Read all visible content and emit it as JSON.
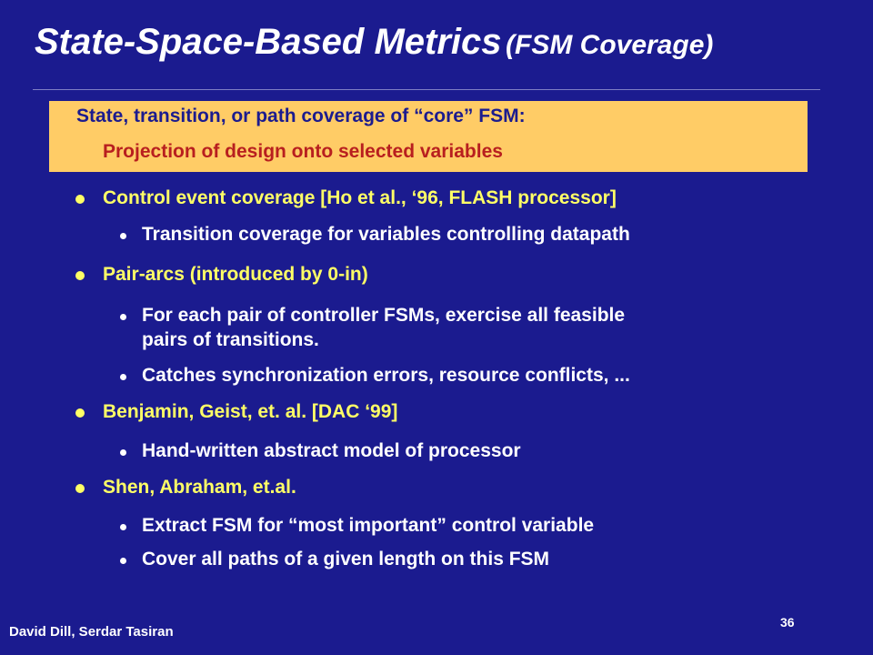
{
  "slide": {
    "title": "State-Space-Based Metrics",
    "title_sub": "(FSM Coverage)",
    "highlight": {
      "line1": "State, transition, or path coverage of “core” FSM:",
      "line2": "Projection of design onto selected variables"
    },
    "bullets": [
      {
        "text": "Control event coverage [Ho et al., ‘96, FLASH processor]"
      },
      {
        "text": "Transition coverage for variables controlling datapath"
      },
      {
        "text": "Pair-arcs (introduced by 0-in)"
      },
      {
        "text": "For each pair of controller FSMs, exercise all feasible"
      },
      {
        "text": "pairs of transitions."
      },
      {
        "text": "Catches synchronization errors, resource conflicts, ..."
      },
      {
        "text": "Benjamin, Geist, et. al. [DAC ‘99]"
      },
      {
        "text": "Hand-written abstract model of processor"
      },
      {
        "text": "Shen, Abraham, et.al."
      },
      {
        "text": "Extract FSM for “most important” control variable"
      },
      {
        "text": "Cover all paths of a given length on this FSM"
      }
    ],
    "footer_author": "David Dill,  Serdar Tasiran",
    "page_number": "36",
    "colors": {
      "background": "#1b1b8f",
      "highlight": "#ffcc66",
      "level1_text": "#ffff66",
      "level2_text": "#ffffff",
      "highlight_line2": "#b81f1f"
    }
  }
}
